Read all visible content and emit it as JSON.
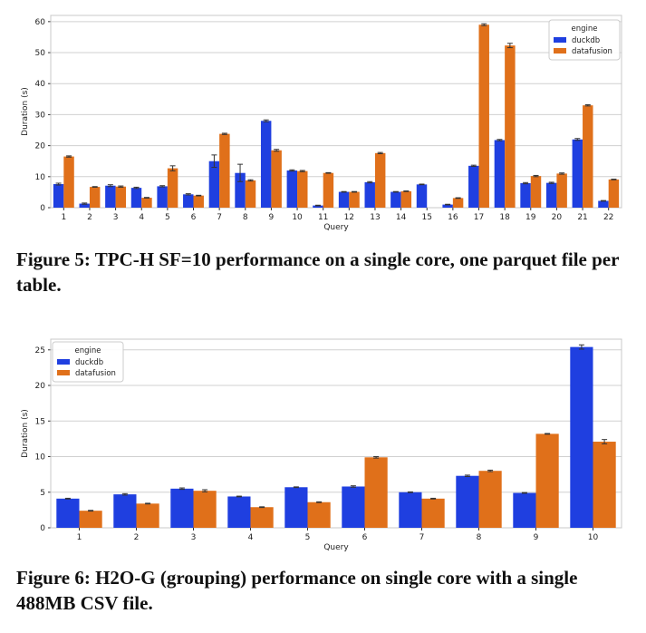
{
  "colors": {
    "duckdb": "#1f3fe0",
    "datafusion": "#e0701a",
    "grid": "#d0d0d0",
    "frame": "#c8c8c8"
  },
  "figures": [
    {
      "caption": "Figure 5: TPC-H SF=10 performance on a single core, one parquet file per table.",
      "legend_title": "engine",
      "legend_labels": [
        "duckdb",
        "datafusion"
      ],
      "legend_position": "top-right"
    },
    {
      "caption": "Figure 6: H2O-G (grouping) performance on single core with a single 488MB CSV file.",
      "legend_title": "engine",
      "legend_labels": [
        "duckdb",
        "datafusion"
      ],
      "legend_position": "top-left"
    }
  ],
  "chart_data": [
    {
      "type": "bar",
      "xlabel": "Query",
      "ylabel": "Duration (s)",
      "ylim": [
        0,
        62
      ],
      "yticks": [
        0,
        10,
        20,
        30,
        40,
        50,
        60
      ],
      "grid": true,
      "categories": [
        "1",
        "2",
        "3",
        "4",
        "5",
        "6",
        "7",
        "8",
        "9",
        "10",
        "11",
        "12",
        "13",
        "14",
        "15",
        "16",
        "17",
        "18",
        "19",
        "20",
        "21",
        "22"
      ],
      "series": [
        {
          "name": "duckdb",
          "values": [
            7.6,
            1.3,
            7.1,
            6.4,
            6.9,
            4.3,
            15.0,
            11.2,
            28.0,
            12.0,
            0.7,
            5.1,
            8.2,
            5.1,
            7.5,
            1.0,
            13.5,
            21.8,
            7.9,
            8.0,
            22.0,
            2.2
          ],
          "errors": [
            0.3,
            0.2,
            0.3,
            0.2,
            0.2,
            0.2,
            2.0,
            2.8,
            0.3,
            0.2,
            0.1,
            0.1,
            0.2,
            0.1,
            0.1,
            0.1,
            0.2,
            0.2,
            0.2,
            0.2,
            0.3,
            0.1
          ]
        },
        {
          "name": "datafusion",
          "values": [
            16.5,
            6.7,
            6.8,
            3.2,
            12.7,
            3.9,
            23.8,
            8.8,
            18.5,
            11.8,
            11.2,
            5.1,
            17.6,
            5.3,
            null,
            3.1,
            59.0,
            52.3,
            10.2,
            11.0,
            33.0,
            9.1
          ],
          "errors": [
            0.2,
            0.1,
            0.2,
            0.1,
            0.8,
            0.1,
            0.2,
            0.2,
            0.3,
            0.2,
            0.1,
            0.1,
            0.2,
            0.1,
            null,
            0.1,
            0.3,
            0.7,
            0.2,
            0.2,
            0.2,
            0.1
          ]
        }
      ]
    },
    {
      "type": "bar",
      "xlabel": "Query",
      "ylabel": "Duration (s)",
      "ylim": [
        0,
        26.5
      ],
      "yticks": [
        0,
        5,
        10,
        15,
        20,
        25
      ],
      "grid": true,
      "categories": [
        "1",
        "2",
        "3",
        "4",
        "5",
        "6",
        "7",
        "8",
        "9",
        "10"
      ],
      "series": [
        {
          "name": "duckdb",
          "values": [
            4.1,
            4.7,
            5.5,
            4.4,
            5.7,
            5.8,
            5.0,
            7.3,
            4.9,
            25.4
          ],
          "errors": [
            0.05,
            0.1,
            0.1,
            0.05,
            0.05,
            0.1,
            0.05,
            0.1,
            0.05,
            0.3
          ]
        },
        {
          "name": "datafusion",
          "values": [
            2.4,
            3.4,
            5.2,
            2.9,
            3.6,
            9.9,
            4.1,
            8.0,
            13.2,
            12.1
          ],
          "errors": [
            0.05,
            0.05,
            0.15,
            0.05,
            0.05,
            0.1,
            0.05,
            0.1,
            0.05,
            0.3
          ]
        }
      ]
    }
  ]
}
